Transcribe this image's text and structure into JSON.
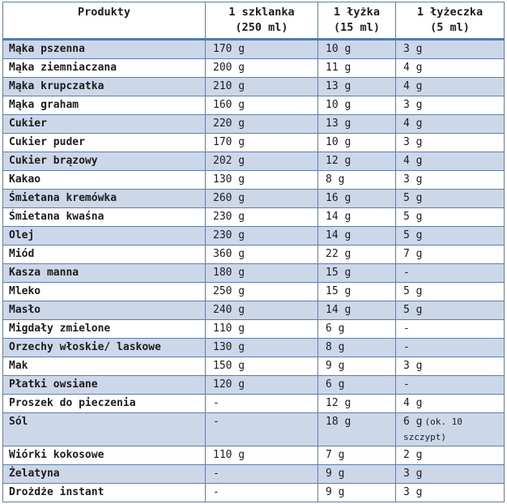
{
  "table": {
    "header": {
      "columns": [
        {
          "label": "Produkty",
          "sub": ""
        },
        {
          "label": "1 szklanka",
          "sub": "(250 ml)"
        },
        {
          "label": "1 łyżka",
          "sub": "(15 ml)"
        },
        {
          "label": "1 łyżeczka",
          "sub": "(5 ml)"
        }
      ]
    },
    "rows": [
      {
        "product": "Mąka pszenna",
        "glass": "170 g",
        "spoon": "10 g",
        "tea": "3 g"
      },
      {
        "product": "Mąka ziemniaczana",
        "glass": "200 g",
        "spoon": "11 g",
        "tea": "4 g"
      },
      {
        "product": "Mąka krupczatka",
        "glass": "210 g",
        "spoon": "13 g",
        "tea": "4 g"
      },
      {
        "product": "Mąka graham",
        "glass": "160 g",
        "spoon": "10 g",
        "tea": "3 g"
      },
      {
        "product": "Cukier",
        "glass": "220 g",
        "spoon": "13 g",
        "tea": "4 g"
      },
      {
        "product": "Cukier puder",
        "glass": "170 g",
        "spoon": "10 g",
        "tea": "3 g"
      },
      {
        "product": "Cukier brązowy",
        "glass": "202 g",
        "spoon": "12 g",
        "tea": "4 g"
      },
      {
        "product": "Kakao",
        "glass": "130 g",
        "spoon": "8 g",
        "tea": "3 g"
      },
      {
        "product": "Śmietana kremówka",
        "glass": "260 g",
        "spoon": "16 g",
        "tea": "5 g"
      },
      {
        "product": "Śmietana kwaśna",
        "glass": "230 g",
        "spoon": "14 g",
        "tea": "5 g"
      },
      {
        "product": "Olej",
        "glass": "230 g",
        "spoon": "14 g",
        "tea": "5 g"
      },
      {
        "product": "Miód",
        "glass": "360 g",
        "spoon": "22 g",
        "tea": "7 g"
      },
      {
        "product": "Kasza manna",
        "glass": "180 g",
        "spoon": "15 g",
        "tea": "-"
      },
      {
        "product": "Mleko",
        "glass": "250 g",
        "spoon": "15 g",
        "tea": "5 g"
      },
      {
        "product": "Masło",
        "glass": "240 g",
        "spoon": "14 g",
        "tea": "5 g"
      },
      {
        "product": "Migdały zmielone",
        "glass": "110 g",
        "spoon": "6 g",
        "tea": "-"
      },
      {
        "product": "Orzechy włoskie/ laskowe",
        "glass": "130 g",
        "spoon": "8 g",
        "tea": "-"
      },
      {
        "product": "Mak",
        "glass": "150 g",
        "spoon": "9 g",
        "tea": "3 g"
      },
      {
        "product": "Płatki owsiane",
        "glass": "120 g",
        "spoon": "6 g",
        "tea": "-"
      },
      {
        "product": "Proszek do pieczenia",
        "glass": "-",
        "spoon": "12 g",
        "tea": "4 g"
      },
      {
        "product": "Sól",
        "glass": "-",
        "spoon": "18 g",
        "tea": "6 g",
        "tea_note": "(ok. 10 szczypt)"
      },
      {
        "product": "Wiórki kokosowe",
        "glass": "110 g",
        "spoon": "7 g",
        "tea": "2 g"
      },
      {
        "product": "Żelatyna",
        "glass": "-",
        "spoon": "9 g",
        "tea": "3 g"
      },
      {
        "product": "Drożdże instant",
        "glass": "-",
        "spoon": "9 g",
        "tea": "3 g"
      }
    ],
    "colors": {
      "stripe": "#ccd8e9",
      "cell_border": "#5e7da8",
      "header_rule": "#4e7cb0",
      "text": "#1c1c1c"
    }
  }
}
